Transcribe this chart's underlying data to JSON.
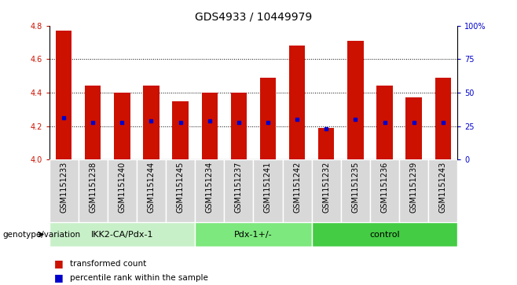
{
  "title": "GDS4933 / 10449979",
  "samples": [
    "GSM1151233",
    "GSM1151238",
    "GSM1151240",
    "GSM1151244",
    "GSM1151245",
    "GSM1151234",
    "GSM1151237",
    "GSM1151241",
    "GSM1151242",
    "GSM1151232",
    "GSM1151235",
    "GSM1151236",
    "GSM1151239",
    "GSM1151243"
  ],
  "transformed_counts": [
    4.77,
    4.44,
    4.4,
    4.44,
    4.35,
    4.4,
    4.4,
    4.49,
    4.68,
    4.19,
    4.71,
    4.44,
    4.37,
    4.49
  ],
  "percentile_ranks": [
    4.25,
    4.22,
    4.22,
    4.23,
    4.22,
    4.23,
    4.22,
    4.22,
    4.24,
    4.185,
    4.24,
    4.22,
    4.22,
    4.22
  ],
  "groups": [
    {
      "label": "IKK2-CA/Pdx-1",
      "start": 0,
      "end": 5,
      "color": "#c8f0c8"
    },
    {
      "label": "Pdx-1+/-",
      "start": 5,
      "end": 9,
      "color": "#7de87d"
    },
    {
      "label": "control",
      "start": 9,
      "end": 14,
      "color": "#44cc44"
    }
  ],
  "bar_color": "#cc1100",
  "dot_color": "#0000cc",
  "y_min": 4.0,
  "y_max": 4.8,
  "y_ticks": [
    4.0,
    4.2,
    4.4,
    4.6,
    4.8
  ],
  "right_y_ticks": [
    0,
    25,
    50,
    75,
    100
  ],
  "right_y_tick_labels": [
    "0",
    "25",
    "50",
    "75",
    "100%"
  ],
  "grid_values": [
    4.2,
    4.4,
    4.6
  ],
  "bar_width": 0.55,
  "legend_label_count": "transformed count",
  "legend_label_percentile": "percentile rank within the sample",
  "genotype_label": "genotype/variation",
  "title_fontsize": 10,
  "tick_fontsize": 7,
  "label_fontsize": 7.5,
  "group_label_fontsize": 8,
  "sample_bg_color": "#d8d8d8",
  "sample_border_color": "#ffffff"
}
